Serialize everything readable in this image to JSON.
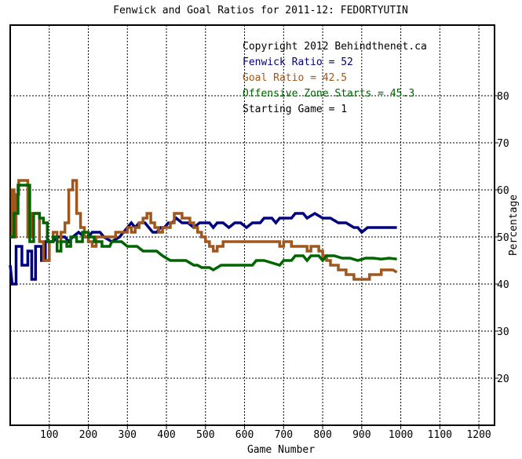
{
  "chart_data": {
    "type": "line",
    "title": "Fenwick and Goal Ratios for 2011-12: FEDORTYUTIN",
    "xlabel": "Game Number",
    "ylabel": "Percentage",
    "xlim": [
      0,
      1240
    ],
    "ylim": [
      10,
      95
    ],
    "x_ticks": [
      100,
      200,
      300,
      400,
      500,
      600,
      700,
      800,
      900,
      1000,
      1100,
      1200
    ],
    "y_ticks": [
      20,
      30,
      40,
      50,
      60,
      70,
      80
    ],
    "grid": true,
    "legend_position": "top-right",
    "annotations": [
      {
        "text": "Copyright 2012 Behindthenet.ca",
        "color": "#000000"
      },
      {
        "text": "Fenwick Ratio = 52",
        "color": "#00007f"
      },
      {
        "text": "Goal Ratio = 42.5",
        "color": "#a0571e"
      },
      {
        "text": "Offensive Zone Starts = 45.3",
        "color": "#006400"
      },
      {
        "text": "Starting Game = 1",
        "color": "#000000"
      }
    ],
    "series": [
      {
        "color": "#00007f",
        "points": [
          [
            0,
            44
          ],
          [
            5,
            40
          ],
          [
            15,
            40
          ],
          [
            15,
            48
          ],
          [
            30,
            48
          ],
          [
            30,
            44
          ],
          [
            45,
            44
          ],
          [
            45,
            47
          ],
          [
            55,
            47
          ],
          [
            55,
            41
          ],
          [
            65,
            41
          ],
          [
            65,
            48
          ],
          [
            80,
            48
          ],
          [
            80,
            45
          ],
          [
            90,
            45
          ],
          [
            90,
            49
          ],
          [
            100,
            49
          ],
          [
            110,
            49
          ],
          [
            120,
            50
          ],
          [
            140,
            50
          ],
          [
            150,
            49
          ],
          [
            160,
            50
          ],
          [
            175,
            51
          ],
          [
            190,
            50
          ],
          [
            200,
            50
          ],
          [
            210,
            51
          ],
          [
            230,
            51
          ],
          [
            240,
            50
          ],
          [
            260,
            49
          ],
          [
            280,
            50
          ],
          [
            290,
            51
          ],
          [
            300,
            52
          ],
          [
            310,
            53
          ],
          [
            320,
            52
          ],
          [
            330,
            53
          ],
          [
            345,
            53
          ],
          [
            355,
            52
          ],
          [
            365,
            51
          ],
          [
            375,
            51
          ],
          [
            385,
            52
          ],
          [
            395,
            52
          ],
          [
            405,
            53
          ],
          [
            415,
            53
          ],
          [
            425,
            54
          ],
          [
            440,
            53
          ],
          [
            455,
            53
          ],
          [
            470,
            52
          ],
          [
            485,
            53
          ],
          [
            500,
            53
          ],
          [
            510,
            53
          ],
          [
            520,
            52
          ],
          [
            530,
            53
          ],
          [
            545,
            53
          ],
          [
            560,
            52
          ],
          [
            575,
            53
          ],
          [
            590,
            53
          ],
          [
            605,
            52
          ],
          [
            620,
            53
          ],
          [
            640,
            53
          ],
          [
            650,
            54
          ],
          [
            670,
            54
          ],
          [
            680,
            53
          ],
          [
            690,
            54
          ],
          [
            700,
            54
          ],
          [
            720,
            54
          ],
          [
            730,
            55
          ],
          [
            750,
            55
          ],
          [
            760,
            54
          ],
          [
            780,
            55
          ],
          [
            800,
            54
          ],
          [
            820,
            54
          ],
          [
            840,
            53
          ],
          [
            860,
            53
          ],
          [
            880,
            52
          ],
          [
            890,
            52
          ],
          [
            900,
            51
          ],
          [
            915,
            52
          ],
          [
            930,
            52
          ],
          [
            950,
            52
          ],
          [
            970,
            52
          ],
          [
            990,
            52
          ]
        ]
      },
      {
        "color": "#a0571e",
        "points": [
          [
            0,
            50
          ],
          [
            5,
            50
          ],
          [
            5,
            60
          ],
          [
            10,
            60
          ],
          [
            10,
            50
          ],
          [
            15,
            50
          ],
          [
            15,
            59
          ],
          [
            22,
            59
          ],
          [
            22,
            62
          ],
          [
            45,
            62
          ],
          [
            45,
            50
          ],
          [
            55,
            50
          ],
          [
            55,
            55
          ],
          [
            75,
            55
          ],
          [
            75,
            49
          ],
          [
            85,
            49
          ],
          [
            85,
            45
          ],
          [
            100,
            45
          ],
          [
            100,
            49
          ],
          [
            110,
            49
          ],
          [
            110,
            51
          ],
          [
            120,
            51
          ],
          [
            120,
            49
          ],
          [
            130,
            49
          ],
          [
            130,
            51
          ],
          [
            140,
            51
          ],
          [
            140,
            53
          ],
          [
            150,
            53
          ],
          [
            150,
            60
          ],
          [
            160,
            60
          ],
          [
            160,
            62
          ],
          [
            170,
            62
          ],
          [
            170,
            55
          ],
          [
            180,
            55
          ],
          [
            180,
            52
          ],
          [
            190,
            52
          ],
          [
            190,
            50
          ],
          [
            200,
            50
          ],
          [
            200,
            49
          ],
          [
            210,
            49
          ],
          [
            210,
            48
          ],
          [
            220,
            48
          ],
          [
            220,
            50
          ],
          [
            240,
            50
          ],
          [
            260,
            50
          ],
          [
            270,
            50
          ],
          [
            270,
            51
          ],
          [
            290,
            51
          ],
          [
            300,
            51
          ],
          [
            300,
            52
          ],
          [
            310,
            52
          ],
          [
            310,
            51
          ],
          [
            320,
            51
          ],
          [
            320,
            52
          ],
          [
            330,
            52
          ],
          [
            330,
            53
          ],
          [
            340,
            53
          ],
          [
            340,
            54
          ],
          [
            350,
            54
          ],
          [
            350,
            55
          ],
          [
            360,
            55
          ],
          [
            360,
            53
          ],
          [
            370,
            53
          ],
          [
            370,
            52
          ],
          [
            380,
            52
          ],
          [
            380,
            51
          ],
          [
            390,
            51
          ],
          [
            390,
            52
          ],
          [
            410,
            52
          ],
          [
            410,
            53
          ],
          [
            420,
            53
          ],
          [
            420,
            55
          ],
          [
            440,
            55
          ],
          [
            440,
            54
          ],
          [
            460,
            54
          ],
          [
            460,
            53
          ],
          [
            470,
            53
          ],
          [
            470,
            52
          ],
          [
            480,
            52
          ],
          [
            480,
            51
          ],
          [
            490,
            51
          ],
          [
            490,
            50
          ],
          [
            500,
            50
          ],
          [
            500,
            49
          ],
          [
            510,
            49
          ],
          [
            510,
            48
          ],
          [
            520,
            48
          ],
          [
            520,
            47
          ],
          [
            530,
            47
          ],
          [
            530,
            48
          ],
          [
            545,
            48
          ],
          [
            545,
            49
          ],
          [
            560,
            49
          ],
          [
            580,
            49
          ],
          [
            600,
            49
          ],
          [
            620,
            49
          ],
          [
            640,
            49
          ],
          [
            660,
            49
          ],
          [
            690,
            49
          ],
          [
            690,
            48
          ],
          [
            700,
            48
          ],
          [
            700,
            49
          ],
          [
            720,
            49
          ],
          [
            720,
            48
          ],
          [
            760,
            48
          ],
          [
            760,
            47
          ],
          [
            770,
            47
          ],
          [
            770,
            48
          ],
          [
            790,
            48
          ],
          [
            790,
            47
          ],
          [
            800,
            47
          ],
          [
            800,
            46
          ],
          [
            810,
            46
          ],
          [
            810,
            45
          ],
          [
            820,
            45
          ],
          [
            820,
            44
          ],
          [
            840,
            44
          ],
          [
            840,
            43
          ],
          [
            860,
            43
          ],
          [
            860,
            42
          ],
          [
            880,
            42
          ],
          [
            880,
            41
          ],
          [
            920,
            41
          ],
          [
            920,
            42
          ],
          [
            950,
            42
          ],
          [
            950,
            43
          ],
          [
            980,
            43
          ],
          [
            990,
            42.5
          ]
        ]
      },
      {
        "color": "#006400",
        "points": [
          [
            0,
            50
          ],
          [
            10,
            50
          ],
          [
            10,
            55
          ],
          [
            20,
            55
          ],
          [
            20,
            61
          ],
          [
            50,
            61
          ],
          [
            50,
            49
          ],
          [
            60,
            49
          ],
          [
            60,
            55
          ],
          [
            75,
            55
          ],
          [
            75,
            54
          ],
          [
            85,
            54
          ],
          [
            85,
            53
          ],
          [
            95,
            53
          ],
          [
            95,
            49
          ],
          [
            110,
            49
          ],
          [
            110,
            50
          ],
          [
            120,
            50
          ],
          [
            120,
            47
          ],
          [
            130,
            47
          ],
          [
            130,
            49
          ],
          [
            145,
            49
          ],
          [
            145,
            48
          ],
          [
            155,
            48
          ],
          [
            155,
            50
          ],
          [
            170,
            50
          ],
          [
            170,
            49
          ],
          [
            185,
            49
          ],
          [
            185,
            51
          ],
          [
            200,
            51
          ],
          [
            200,
            50
          ],
          [
            215,
            50
          ],
          [
            215,
            49
          ],
          [
            235,
            49
          ],
          [
            235,
            48
          ],
          [
            255,
            48
          ],
          [
            260,
            49
          ],
          [
            285,
            49
          ],
          [
            300,
            48
          ],
          [
            325,
            48
          ],
          [
            340,
            47
          ],
          [
            355,
            47
          ],
          [
            360,
            47
          ],
          [
            375,
            47
          ],
          [
            390,
            46
          ],
          [
            410,
            45
          ],
          [
            430,
            45
          ],
          [
            450,
            45
          ],
          [
            470,
            44
          ],
          [
            480,
            44
          ],
          [
            490,
            43.5
          ],
          [
            510,
            43.5
          ],
          [
            520,
            43
          ],
          [
            540,
            44
          ],
          [
            560,
            44
          ],
          [
            580,
            44
          ],
          [
            600,
            44
          ],
          [
            620,
            44
          ],
          [
            630,
            45
          ],
          [
            650,
            45
          ],
          [
            670,
            44.5
          ],
          [
            690,
            44
          ],
          [
            700,
            45
          ],
          [
            720,
            45
          ],
          [
            730,
            46
          ],
          [
            750,
            46
          ],
          [
            760,
            45
          ],
          [
            770,
            46
          ],
          [
            790,
            46
          ],
          [
            800,
            45
          ],
          [
            810,
            46
          ],
          [
            830,
            46
          ],
          [
            850,
            45.5
          ],
          [
            870,
            45.5
          ],
          [
            890,
            45
          ],
          [
            910,
            45.5
          ],
          [
            930,
            45.5
          ],
          [
            950,
            45.3
          ],
          [
            970,
            45.5
          ],
          [
            990,
            45.3
          ]
        ]
      }
    ]
  }
}
